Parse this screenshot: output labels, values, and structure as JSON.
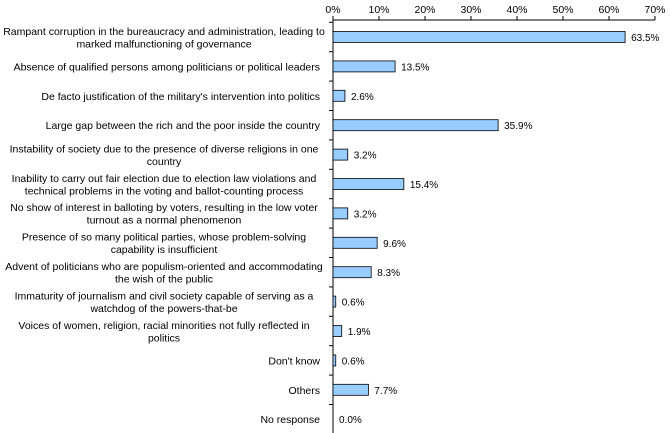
{
  "chart_data": {
    "type": "bar",
    "orientation": "horizontal",
    "x_axis_position": "top",
    "xlim": [
      0,
      70
    ],
    "tick_step": 10,
    "tick_labels": [
      "0%",
      "10%",
      "20%",
      "30%",
      "40%",
      "50%",
      "60%",
      "70%"
    ],
    "grid": false,
    "legend": "none",
    "title": "",
    "xlabel": "",
    "ylabel": "",
    "bar_color": "#99ccff",
    "bar_edge_color": "#000000",
    "categories": [
      [
        "Rampant corruption in the bureaucracy and administration, leading to",
        "marked malfunctioning of governance"
      ],
      [
        "Absence of qualified persons among politicians or political leaders"
      ],
      [
        "De facto justification of the military's intervention into politics"
      ],
      [
        "Large gap between the rich and the poor inside the country"
      ],
      [
        "Instability of society due to the presence of diverse religions in one",
        "country"
      ],
      [
        "Inability to carry out fair election due to election law violations and",
        "technical problems in the voting and ballot-counting process"
      ],
      [
        "No show of interest in balloting by voters, resulting in the low voter",
        "turnout as a normal phenomenon"
      ],
      [
        "Presence of so many political parties, whose problem-solving",
        "capability is insufficient"
      ],
      [
        "Advent of politicians who are populism-oriented and accommodating",
        "the wish of the public"
      ],
      [
        "Immaturity of journalism and civil society capable of serving as a",
        "watchdog of the powers-that-be"
      ],
      [
        "Voices of women, religion, racial minorities not fully reflected in",
        "politics"
      ],
      [
        "Don't know"
      ],
      [
        "Others"
      ],
      [
        "No response"
      ]
    ],
    "values": [
      63.5,
      13.5,
      2.6,
      35.9,
      3.2,
      15.4,
      3.2,
      9.6,
      8.3,
      0.6,
      1.9,
      0.6,
      7.7,
      0.0
    ],
    "value_labels": [
      "63.5%",
      "13.5%",
      "2.6%",
      "35.9%",
      "3.2%",
      "15.4%",
      "3.2%",
      "9.6%",
      "8.3%",
      "0.6%",
      "1.9%",
      "0.6%",
      "7.7%",
      "0.0%"
    ]
  }
}
